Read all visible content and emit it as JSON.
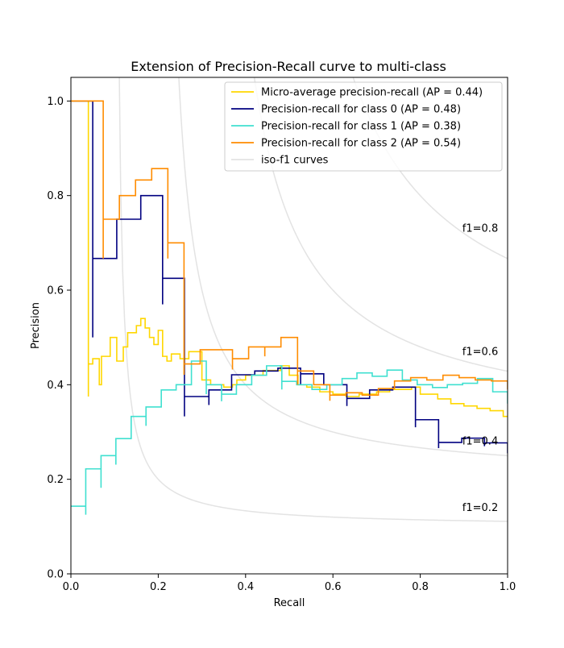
{
  "chart_data": {
    "type": "line",
    "title": "Extension of Precision-Recall curve to multi-class",
    "xlabel": "Recall",
    "ylabel": "Precision",
    "xlim": [
      0.0,
      1.0
    ],
    "ylim": [
      0.0,
      1.05
    ],
    "grid": false,
    "legend_position": "top-right",
    "x_ticks": [
      0.0,
      0.2,
      0.4,
      0.6,
      0.8,
      1.0
    ],
    "y_ticks": [
      0.0,
      0.2,
      0.4,
      0.6,
      0.8,
      1.0
    ],
    "x_tick_labels": [
      "0.0",
      "0.2",
      "0.4",
      "0.6",
      "0.8",
      "1.0"
    ],
    "y_tick_labels": [
      "0.0",
      "0.2",
      "0.4",
      "0.6",
      "0.8",
      "1.0"
    ],
    "iso_f1": {
      "values": [
        0.2,
        0.4,
        0.6,
        0.8
      ],
      "labels": [
        "f1=0.2",
        "f1=0.4",
        "f1=0.6",
        "f1=0.8"
      ],
      "label_points": [
        [
          0.9,
          0.14
        ],
        [
          0.9,
          0.28
        ],
        [
          0.9,
          0.47
        ],
        [
          0.9,
          0.73
        ]
      ],
      "color": "#cccccc"
    },
    "series": [
      {
        "name": "Micro-average precision-recall (AP = 0.44)",
        "color": "#ffd700",
        "points": [
          [
            0,
            1.0
          ],
          [
            0.04,
            1.0
          ],
          [
            0.04,
            0.375
          ],
          [
            0.04,
            0.444
          ],
          [
            0.05,
            0.444
          ],
          [
            0.05,
            0.455
          ],
          [
            0.065,
            0.455
          ],
          [
            0.065,
            0.4
          ],
          [
            0.07,
            0.4
          ],
          [
            0.07,
            0.46
          ],
          [
            0.09,
            0.46
          ],
          [
            0.09,
            0.5
          ],
          [
            0.105,
            0.5
          ],
          [
            0.105,
            0.45
          ],
          [
            0.12,
            0.45
          ],
          [
            0.12,
            0.48
          ],
          [
            0.13,
            0.48
          ],
          [
            0.13,
            0.51
          ],
          [
            0.15,
            0.51
          ],
          [
            0.15,
            0.525
          ],
          [
            0.16,
            0.525
          ],
          [
            0.16,
            0.54
          ],
          [
            0.17,
            0.54
          ],
          [
            0.17,
            0.52
          ],
          [
            0.18,
            0.52
          ],
          [
            0.18,
            0.5
          ],
          [
            0.19,
            0.5
          ],
          [
            0.19,
            0.485
          ],
          [
            0.2,
            0.485
          ],
          [
            0.2,
            0.515
          ],
          [
            0.21,
            0.515
          ],
          [
            0.21,
            0.46
          ],
          [
            0.22,
            0.46
          ],
          [
            0.22,
            0.45
          ],
          [
            0.23,
            0.45
          ],
          [
            0.23,
            0.465
          ],
          [
            0.25,
            0.465
          ],
          [
            0.25,
            0.455
          ],
          [
            0.27,
            0.455
          ],
          [
            0.27,
            0.47
          ],
          [
            0.3,
            0.47
          ],
          [
            0.3,
            0.41
          ],
          [
            0.32,
            0.41
          ],
          [
            0.32,
            0.4
          ],
          [
            0.35,
            0.4
          ],
          [
            0.35,
            0.395
          ],
          [
            0.37,
            0.395
          ],
          [
            0.37,
            0.4
          ],
          [
            0.38,
            0.4
          ],
          [
            0.38,
            0.41
          ],
          [
            0.4,
            0.41
          ],
          [
            0.4,
            0.42
          ],
          [
            0.44,
            0.42
          ],
          [
            0.44,
            0.43
          ],
          [
            0.48,
            0.43
          ],
          [
            0.48,
            0.44
          ],
          [
            0.5,
            0.44
          ],
          [
            0.5,
            0.42
          ],
          [
            0.52,
            0.42
          ],
          [
            0.52,
            0.4
          ],
          [
            0.54,
            0.4
          ],
          [
            0.54,
            0.395
          ],
          [
            0.57,
            0.395
          ],
          [
            0.57,
            0.385
          ],
          [
            0.6,
            0.385
          ],
          [
            0.6,
            0.38
          ],
          [
            0.63,
            0.38
          ],
          [
            0.63,
            0.375
          ],
          [
            0.66,
            0.375
          ],
          [
            0.66,
            0.38
          ],
          [
            0.7,
            0.38
          ],
          [
            0.7,
            0.385
          ],
          [
            0.73,
            0.385
          ],
          [
            0.73,
            0.39
          ],
          [
            0.78,
            0.39
          ],
          [
            0.78,
            0.395
          ],
          [
            0.8,
            0.395
          ],
          [
            0.8,
            0.38
          ],
          [
            0.84,
            0.38
          ],
          [
            0.84,
            0.37
          ],
          [
            0.87,
            0.37
          ],
          [
            0.87,
            0.36
          ],
          [
            0.9,
            0.36
          ],
          [
            0.9,
            0.355
          ],
          [
            0.93,
            0.355
          ],
          [
            0.93,
            0.35
          ],
          [
            0.96,
            0.35
          ],
          [
            0.96,
            0.345
          ],
          [
            0.99,
            0.345
          ],
          [
            0.99,
            0.333
          ],
          [
            1.0,
            0.333
          ]
        ]
      },
      {
        "name": "Precision-recall for class 0 (AP = 0.48)",
        "color": "#000080",
        "points": [
          [
            0,
            1.0
          ],
          [
            0.05,
            1.0
          ],
          [
            0.05,
            0.5
          ],
          [
            0.05,
            0.667
          ],
          [
            0.105,
            0.667
          ],
          [
            0.105,
            0.75
          ],
          [
            0.16,
            0.75
          ],
          [
            0.16,
            0.8
          ],
          [
            0.21,
            0.8
          ],
          [
            0.21,
            0.57
          ],
          [
            0.21,
            0.625
          ],
          [
            0.26,
            0.625
          ],
          [
            0.26,
            0.333
          ],
          [
            0.26,
            0.375
          ],
          [
            0.316,
            0.375
          ],
          [
            0.316,
            0.357
          ],
          [
            0.316,
            0.389
          ],
          [
            0.368,
            0.389
          ],
          [
            0.368,
            0.421
          ],
          [
            0.421,
            0.421
          ],
          [
            0.421,
            0.429
          ],
          [
            0.474,
            0.429
          ],
          [
            0.474,
            0.435
          ],
          [
            0.526,
            0.435
          ],
          [
            0.526,
            0.4
          ],
          [
            0.526,
            0.423
          ],
          [
            0.579,
            0.423
          ],
          [
            0.579,
            0.4
          ],
          [
            0.632,
            0.4
          ],
          [
            0.632,
            0.355
          ],
          [
            0.632,
            0.371
          ],
          [
            0.684,
            0.371
          ],
          [
            0.684,
            0.389
          ],
          [
            0.737,
            0.389
          ],
          [
            0.737,
            0.395
          ],
          [
            0.789,
            0.395
          ],
          [
            0.789,
            0.31
          ],
          [
            0.789,
            0.326
          ],
          [
            0.842,
            0.326
          ],
          [
            0.842,
            0.266
          ],
          [
            0.842,
            0.278
          ],
          [
            0.895,
            0.278
          ],
          [
            0.895,
            0.287
          ],
          [
            0.947,
            0.287
          ],
          [
            0.947,
            0.27
          ],
          [
            0.947,
            0.277
          ],
          [
            1.0,
            0.277
          ],
          [
            1.0,
            0.255
          ]
        ]
      },
      {
        "name": "Precision-recall for class 1 (AP = 0.38)",
        "color": "#40e0d0",
        "points": [
          [
            0,
            0.143
          ],
          [
            0.034,
            0.143
          ],
          [
            0.034,
            0.125
          ],
          [
            0.034,
            0.222
          ],
          [
            0.069,
            0.222
          ],
          [
            0.069,
            0.182
          ],
          [
            0.069,
            0.25
          ],
          [
            0.103,
            0.25
          ],
          [
            0.103,
            0.231
          ],
          [
            0.103,
            0.286
          ],
          [
            0.138,
            0.286
          ],
          [
            0.138,
            0.333
          ],
          [
            0.172,
            0.333
          ],
          [
            0.172,
            0.313
          ],
          [
            0.172,
            0.353
          ],
          [
            0.207,
            0.353
          ],
          [
            0.207,
            0.389
          ],
          [
            0.241,
            0.389
          ],
          [
            0.241,
            0.4
          ],
          [
            0.276,
            0.4
          ],
          [
            0.276,
            0.45
          ],
          [
            0.31,
            0.45
          ],
          [
            0.31,
            0.38
          ],
          [
            0.31,
            0.4
          ],
          [
            0.345,
            0.4
          ],
          [
            0.345,
            0.365
          ],
          [
            0.345,
            0.38
          ],
          [
            0.379,
            0.38
          ],
          [
            0.379,
            0.4
          ],
          [
            0.414,
            0.4
          ],
          [
            0.414,
            0.42
          ],
          [
            0.448,
            0.42
          ],
          [
            0.448,
            0.44
          ],
          [
            0.483,
            0.44
          ],
          [
            0.483,
            0.39
          ],
          [
            0.483,
            0.407
          ],
          [
            0.517,
            0.407
          ],
          [
            0.517,
            0.4
          ],
          [
            0.552,
            0.4
          ],
          [
            0.552,
            0.39
          ],
          [
            0.586,
            0.39
          ],
          [
            0.586,
            0.4
          ],
          [
            0.621,
            0.4
          ],
          [
            0.621,
            0.413
          ],
          [
            0.655,
            0.413
          ],
          [
            0.655,
            0.425
          ],
          [
            0.69,
            0.425
          ],
          [
            0.69,
            0.418
          ],
          [
            0.724,
            0.418
          ],
          [
            0.724,
            0.431
          ],
          [
            0.759,
            0.431
          ],
          [
            0.759,
            0.41
          ],
          [
            0.793,
            0.41
          ],
          [
            0.793,
            0.4
          ],
          [
            0.828,
            0.4
          ],
          [
            0.828,
            0.394
          ],
          [
            0.862,
            0.394
          ],
          [
            0.862,
            0.4
          ],
          [
            0.897,
            0.4
          ],
          [
            0.897,
            0.403
          ],
          [
            0.931,
            0.403
          ],
          [
            0.931,
            0.413
          ],
          [
            0.966,
            0.413
          ],
          [
            0.966,
            0.385
          ],
          [
            1.0,
            0.385
          ],
          [
            1.0,
            0.36
          ]
        ]
      },
      {
        "name": "Precision-recall for class 2 (AP = 0.54)",
        "color": "#ff8c00",
        "points": [
          [
            0,
            1.0
          ],
          [
            0.074,
            1.0
          ],
          [
            0.074,
            0.667
          ],
          [
            0.074,
            0.75
          ],
          [
            0.111,
            0.75
          ],
          [
            0.111,
            0.8
          ],
          [
            0.148,
            0.8
          ],
          [
            0.148,
            0.833
          ],
          [
            0.185,
            0.833
          ],
          [
            0.185,
            0.857
          ],
          [
            0.222,
            0.857
          ],
          [
            0.222,
            0.667
          ],
          [
            0.222,
            0.7
          ],
          [
            0.259,
            0.7
          ],
          [
            0.259,
            0.421
          ],
          [
            0.259,
            0.444
          ],
          [
            0.296,
            0.444
          ],
          [
            0.296,
            0.474
          ],
          [
            0.37,
            0.474
          ],
          [
            0.37,
            0.432
          ],
          [
            0.37,
            0.455
          ],
          [
            0.407,
            0.455
          ],
          [
            0.407,
            0.48
          ],
          [
            0.444,
            0.48
          ],
          [
            0.444,
            0.46
          ],
          [
            0.444,
            0.48
          ],
          [
            0.481,
            0.48
          ],
          [
            0.481,
            0.5
          ],
          [
            0.519,
            0.5
          ],
          [
            0.519,
            0.4
          ],
          [
            0.519,
            0.429
          ],
          [
            0.556,
            0.429
          ],
          [
            0.556,
            0.4
          ],
          [
            0.593,
            0.4
          ],
          [
            0.593,
            0.366
          ],
          [
            0.593,
            0.378
          ],
          [
            0.63,
            0.378
          ],
          [
            0.63,
            0.383
          ],
          [
            0.667,
            0.383
          ],
          [
            0.667,
            0.378
          ],
          [
            0.704,
            0.378
          ],
          [
            0.704,
            0.392
          ],
          [
            0.741,
            0.392
          ],
          [
            0.741,
            0.408
          ],
          [
            0.778,
            0.408
          ],
          [
            0.778,
            0.415
          ],
          [
            0.815,
            0.415
          ],
          [
            0.815,
            0.41
          ],
          [
            0.852,
            0.41
          ],
          [
            0.852,
            0.42
          ],
          [
            0.889,
            0.42
          ],
          [
            0.889,
            0.415
          ],
          [
            0.926,
            0.415
          ],
          [
            0.926,
            0.41
          ],
          [
            0.963,
            0.41
          ],
          [
            0.963,
            0.408
          ],
          [
            1.0,
            0.408
          ],
          [
            1.0,
            0.39
          ]
        ]
      }
    ],
    "legend_extra": "iso-f1 curves"
  }
}
